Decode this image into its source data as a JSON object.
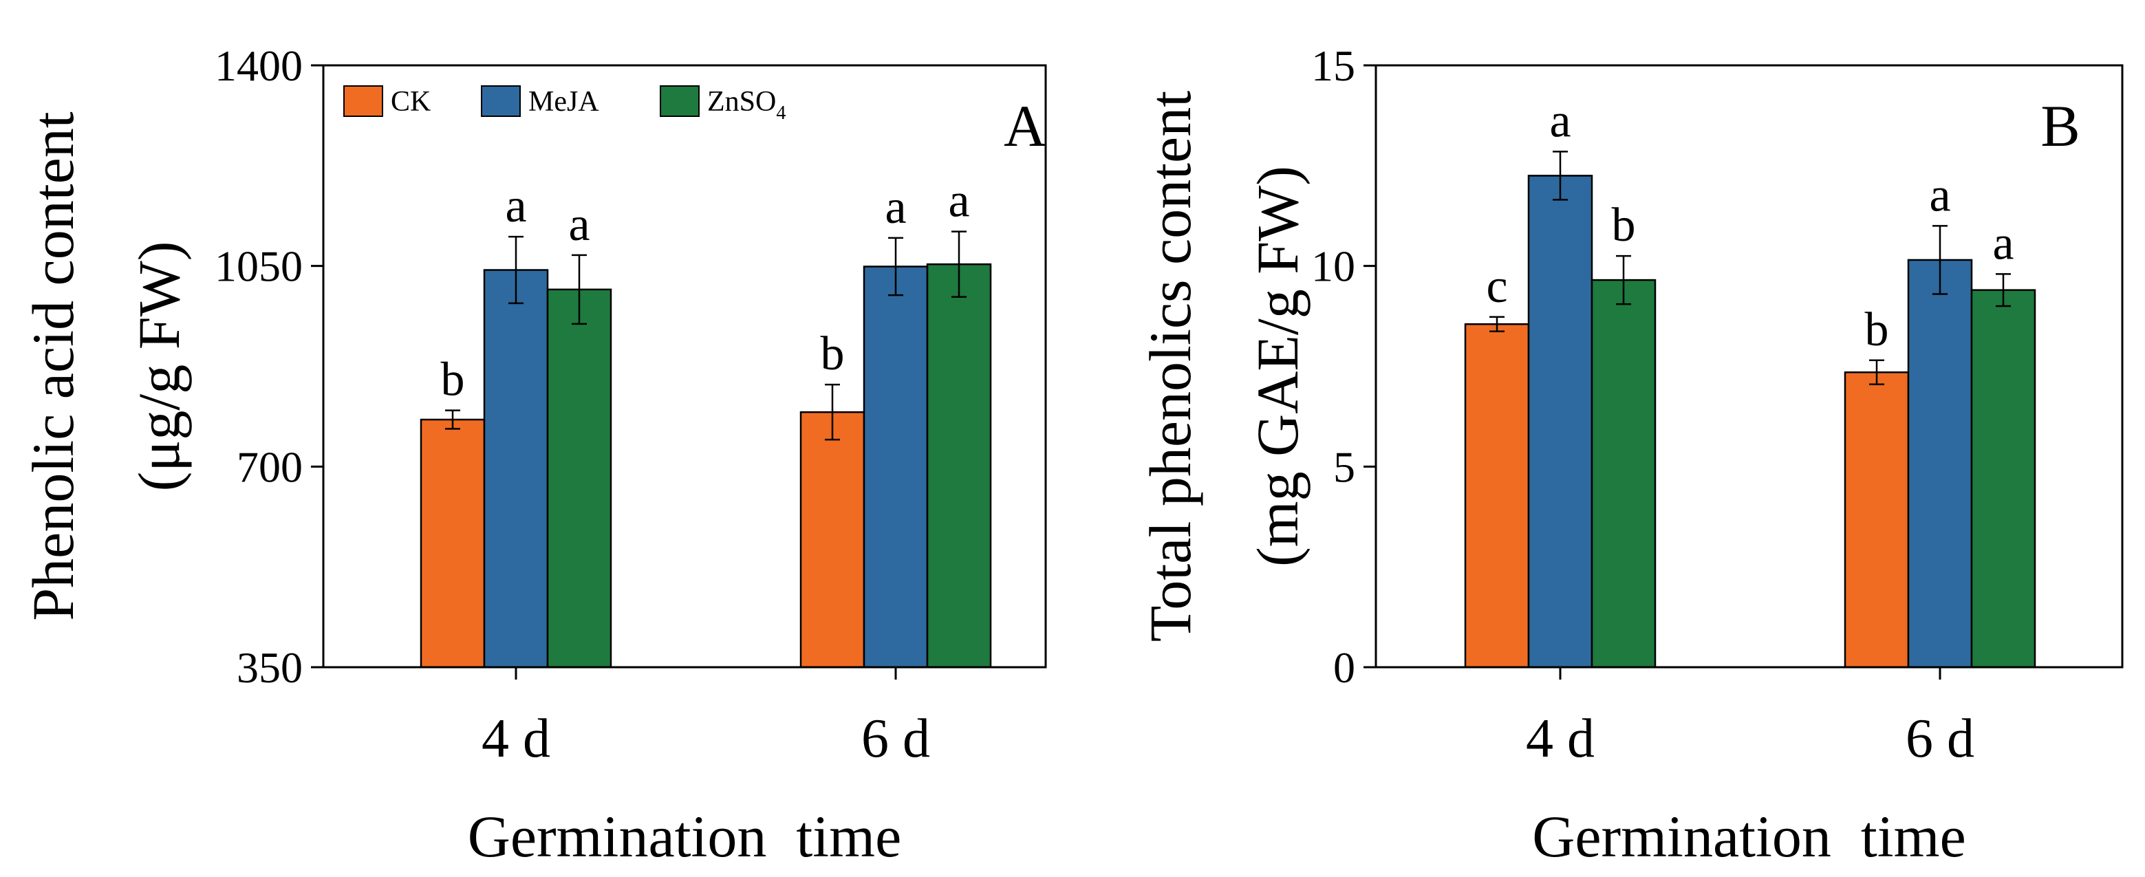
{
  "chart_data": [
    {
      "type": "bar",
      "panel_label": "A",
      "categories": [
        "4 d",
        "6 d"
      ],
      "series": [
        {
          "name": "CK",
          "values": [
            782,
            795
          ],
          "errors": [
            16,
            48
          ],
          "letters": [
            "b",
            "b"
          ]
        },
        {
          "name": "MeJA",
          "values": [
            1043,
            1049
          ],
          "errors": [
            58,
            50
          ],
          "letters": [
            "a",
            "a"
          ]
        },
        {
          "name": "ZnSO4",
          "values": [
            1009,
            1053
          ],
          "errors": [
            60,
            57
          ],
          "letters": [
            "a",
            "a"
          ]
        }
      ],
      "ylim": [
        350,
        1400
      ],
      "yticks": [
        350,
        700,
        1050,
        1400
      ],
      "ylabel": "Phenolic acid content",
      "ylabel_unit": "(μg/g FW)",
      "xlabel": "Germination  time",
      "legend": {
        "placement": "top-left",
        "labels": [
          "CK",
          "MeJA",
          "ZnSO"
        ],
        "subscript": [
          "",
          "",
          "4"
        ]
      }
    },
    {
      "type": "bar",
      "panel_label": "B",
      "categories": [
        "4 d",
        "6 d"
      ],
      "series": [
        {
          "name": "CK",
          "values": [
            8.55,
            7.35
          ],
          "errors": [
            0.18,
            0.3
          ],
          "letters": [
            "c",
            "b"
          ]
        },
        {
          "name": "MeJA",
          "values": [
            12.25,
            10.15
          ],
          "errors": [
            0.6,
            0.85
          ],
          "letters": [
            "a",
            "a"
          ]
        },
        {
          "name": "ZnSO4",
          "values": [
            9.65,
            9.4
          ],
          "errors": [
            0.6,
            0.4
          ],
          "letters": [
            "b",
            "a"
          ]
        }
      ],
      "ylim": [
        0,
        15
      ],
      "yticks": [
        0,
        5,
        10,
        15
      ],
      "ylabel": "Total phenolics content",
      "ylabel_unit": "(mg GAE/g FW)",
      "xlabel": "Germination  time"
    }
  ],
  "colors": {
    "CK": "#f06c23",
    "MeJA": "#2e6a9f",
    "ZnSO4": "#1e7a3e"
  }
}
